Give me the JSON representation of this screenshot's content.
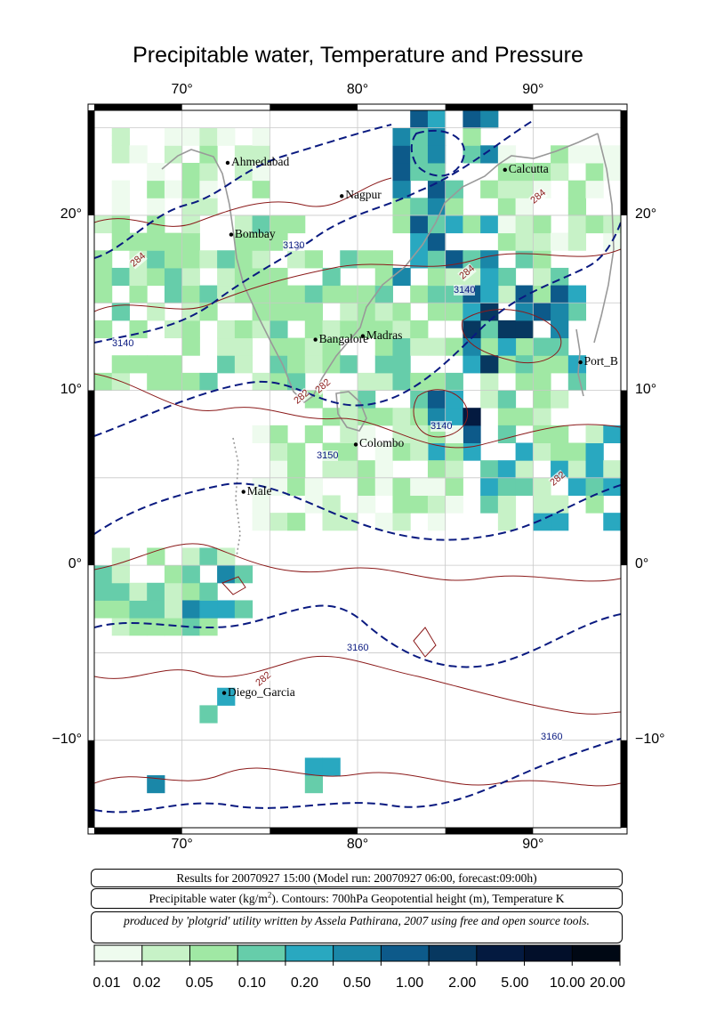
{
  "title": "Precipitable water, Temperature and Pressure",
  "axes": {
    "lon_ticks": [
      "70°",
      "80°",
      "90°"
    ],
    "lat_ticks": [
      "20°",
      "10°",
      "0°",
      "−10°"
    ]
  },
  "cities": [
    {
      "name": "Ahmedabad",
      "lon": 72.6,
      "lat": 23.0
    },
    {
      "name": "Calcutta",
      "lon": 88.4,
      "lat": 22.6
    },
    {
      "name": "Nagpur",
      "lon": 79.1,
      "lat": 21.1
    },
    {
      "name": "Bombay",
      "lon": 72.8,
      "lat": 18.9
    },
    {
      "name": "Madras",
      "lon": 80.3,
      "lat": 13.1
    },
    {
      "name": "Bangalore",
      "lon": 77.6,
      "lat": 12.9
    },
    {
      "name": "Port_B",
      "lon": 92.7,
      "lat": 11.6
    },
    {
      "name": "Colombo",
      "lon": 79.9,
      "lat": 6.9
    },
    {
      "name": "Male",
      "lon": 73.5,
      "lat": 4.2
    },
    {
      "name": "Diego_Garcia",
      "lon": 72.4,
      "lat": -7.3
    }
  ],
  "contour_labels": {
    "geopotential": [
      "3130",
      "3140",
      "3150",
      "3160",
      "3140",
      "3140",
      "3160"
    ],
    "temperature": [
      "284",
      "284",
      "284",
      "282",
      "282",
      "282",
      "282"
    ]
  },
  "info": {
    "run": "Results for 20070927 15:00 (Model run: 20070927 06:00, forecast:09:00h)",
    "legend_prefix": "Precipitable water (kg/m",
    "legend_sup": "2",
    "legend_suffix": ").  Contours: 700hPa Geopotential height (m), Temperature K",
    "credit": "produced by 'plotgrid' utility written by Assela Pathirana, 2007 using free and open source tools."
  },
  "colorbar": {
    "labels": [
      "0.01",
      "0.02",
      "0.05",
      "0.10",
      "0.20",
      "0.50",
      "1.00",
      "2.00",
      "5.00",
      "10.00",
      "20.00"
    ],
    "colors": [
      "#eefbee",
      "#c7f2c7",
      "#a0e8a4",
      "#66cdaa",
      "#29a8c0",
      "#1a87a8",
      "#0d5a8a",
      "#073860",
      "#041a40",
      "#020f2a",
      "#000814"
    ]
  }
}
